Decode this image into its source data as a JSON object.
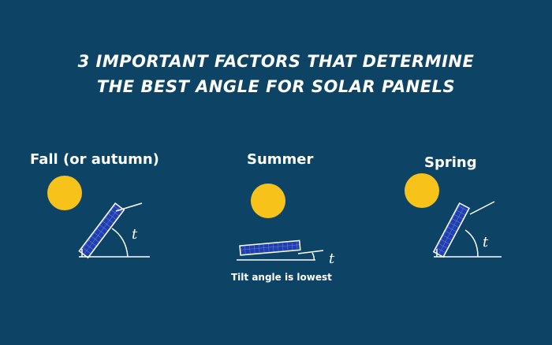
{
  "title": {
    "line1": "3 IMPORTANT FACTORS THAT DETERMINE",
    "line2": "THE BEST ANGLE FOR SOLAR PANELS"
  },
  "seasons": [
    {
      "label": "Fall (or autumn)",
      "angle_label": "t"
    },
    {
      "label": "Summer",
      "angle_label": "t",
      "caption": "Tilt angle is lowest"
    },
    {
      "label": "Spring",
      "angle_label": "t"
    }
  ],
  "colors": {
    "background": "#0d4466",
    "sun": "#f7c31b",
    "panel": "#1f3fb0",
    "text": "#ffffff"
  }
}
